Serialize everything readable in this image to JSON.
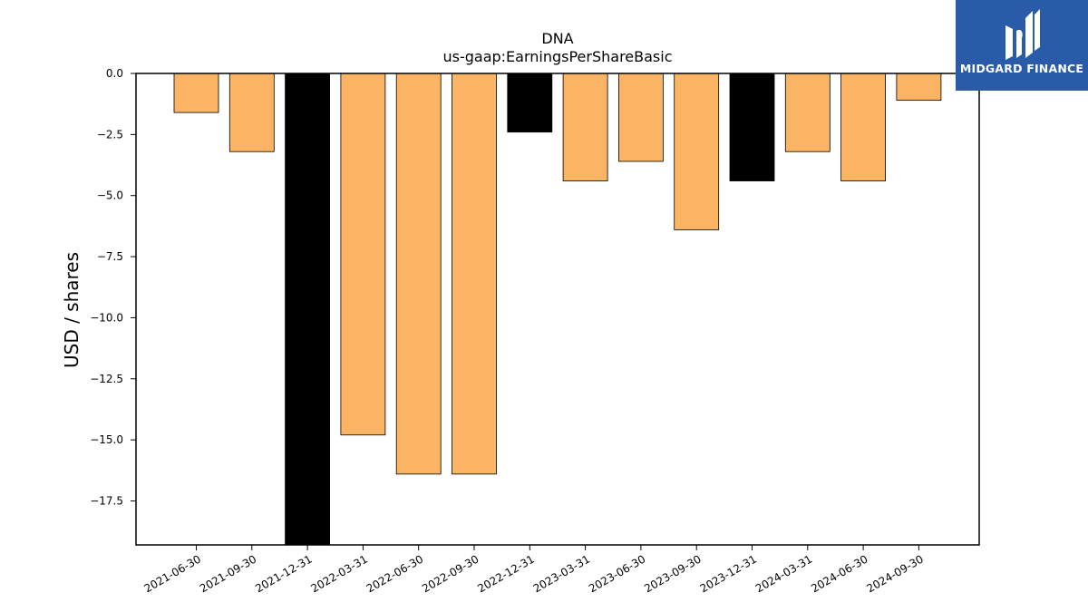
{
  "chart_data": {
    "type": "bar",
    "title": "DNA",
    "subtitle": "us-gaap:EarningsPerShareBasic",
    "xlabel": "",
    "ylabel": "USD / shares",
    "ylim": [
      -19.3,
      0
    ],
    "yticks": [
      0.0,
      -2.5,
      -5.0,
      -7.5,
      -10.0,
      -12.5,
      -15.0,
      -17.5
    ],
    "ytick_labels": [
      "0.0",
      "−2.5",
      "−5.0",
      "−7.5",
      "−10.0",
      "−12.5",
      "−15.0",
      "−17.5"
    ],
    "categories": [
      "2021-06-30",
      "2021-09-30",
      "2021-12-31",
      "2022-03-31",
      "2022-06-30",
      "2022-09-30",
      "2022-12-31",
      "2023-03-31",
      "2023-06-30",
      "2023-09-30",
      "2023-12-31",
      "2024-03-31",
      "2024-06-30",
      "2024-09-30"
    ],
    "values": [
      -1.6,
      -3.2,
      -19.5,
      -14.8,
      -16.4,
      -16.4,
      -2.4,
      -4.4,
      -3.6,
      -6.4,
      -4.4,
      -3.2,
      -4.4,
      -1.1
    ],
    "bar_colors": [
      "#fbb464",
      "#fbb464",
      "#000000",
      "#fbb464",
      "#fbb464",
      "#fbb464",
      "#000000",
      "#fbb464",
      "#fbb464",
      "#fbb464",
      "#000000",
      "#fbb464",
      "#fbb464",
      "#fbb464"
    ],
    "grid": false,
    "legend": "none"
  },
  "logo": {
    "text": "MIDGARD FINANCE",
    "background": "#2a5ba8",
    "icon": "midgard-logo-icon"
  }
}
